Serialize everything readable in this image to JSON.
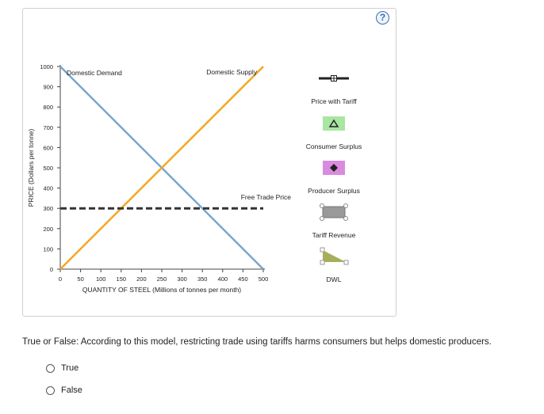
{
  "help_icon": "?",
  "chart_data": {
    "type": "line",
    "xlabel": "QUANTITY OF STEEL (Millions of tonnes per month)",
    "ylabel": "PRICE (Dollars per tonne)",
    "xlim": [
      0,
      500
    ],
    "ylim": [
      0,
      1000
    ],
    "x_ticks": [
      0,
      50,
      100,
      150,
      200,
      250,
      300,
      350,
      400,
      450,
      500
    ],
    "y_ticks": [
      0,
      100,
      200,
      300,
      400,
      500,
      600,
      700,
      800,
      900,
      1000
    ],
    "series": [
      {
        "name": "Domestic Demand",
        "color": "#7aa6cc",
        "points": [
          [
            0,
            1000
          ],
          [
            500,
            0
          ]
        ]
      },
      {
        "name": "Domestic Supply",
        "color": "#f5a623",
        "points": [
          [
            0,
            0
          ],
          [
            500,
            1000
          ]
        ]
      },
      {
        "name": "Free Trade Price",
        "color": "#333333",
        "style": "dashed",
        "points": [
          [
            0,
            300
          ],
          [
            500,
            300
          ]
        ]
      }
    ],
    "legend": [
      {
        "label": "Price with Tariff",
        "icon": "line-with-cross"
      },
      {
        "label": "Consumer Surplus",
        "icon": "green-square-triangle",
        "color": "#a8e6a1"
      },
      {
        "label": "Producer Surplus",
        "icon": "purple-square-diamond",
        "color": "#d98be0"
      },
      {
        "label": "Tariff Revenue",
        "icon": "gray-bar",
        "color": "#999999"
      },
      {
        "label": "DWL",
        "icon": "olive-triangle",
        "color": "#a8ad5a"
      }
    ]
  },
  "question": {
    "text": "True or False: According to this model, restricting trade using tariffs harms consumers but helps domestic producers.",
    "options": [
      "True",
      "False"
    ]
  }
}
